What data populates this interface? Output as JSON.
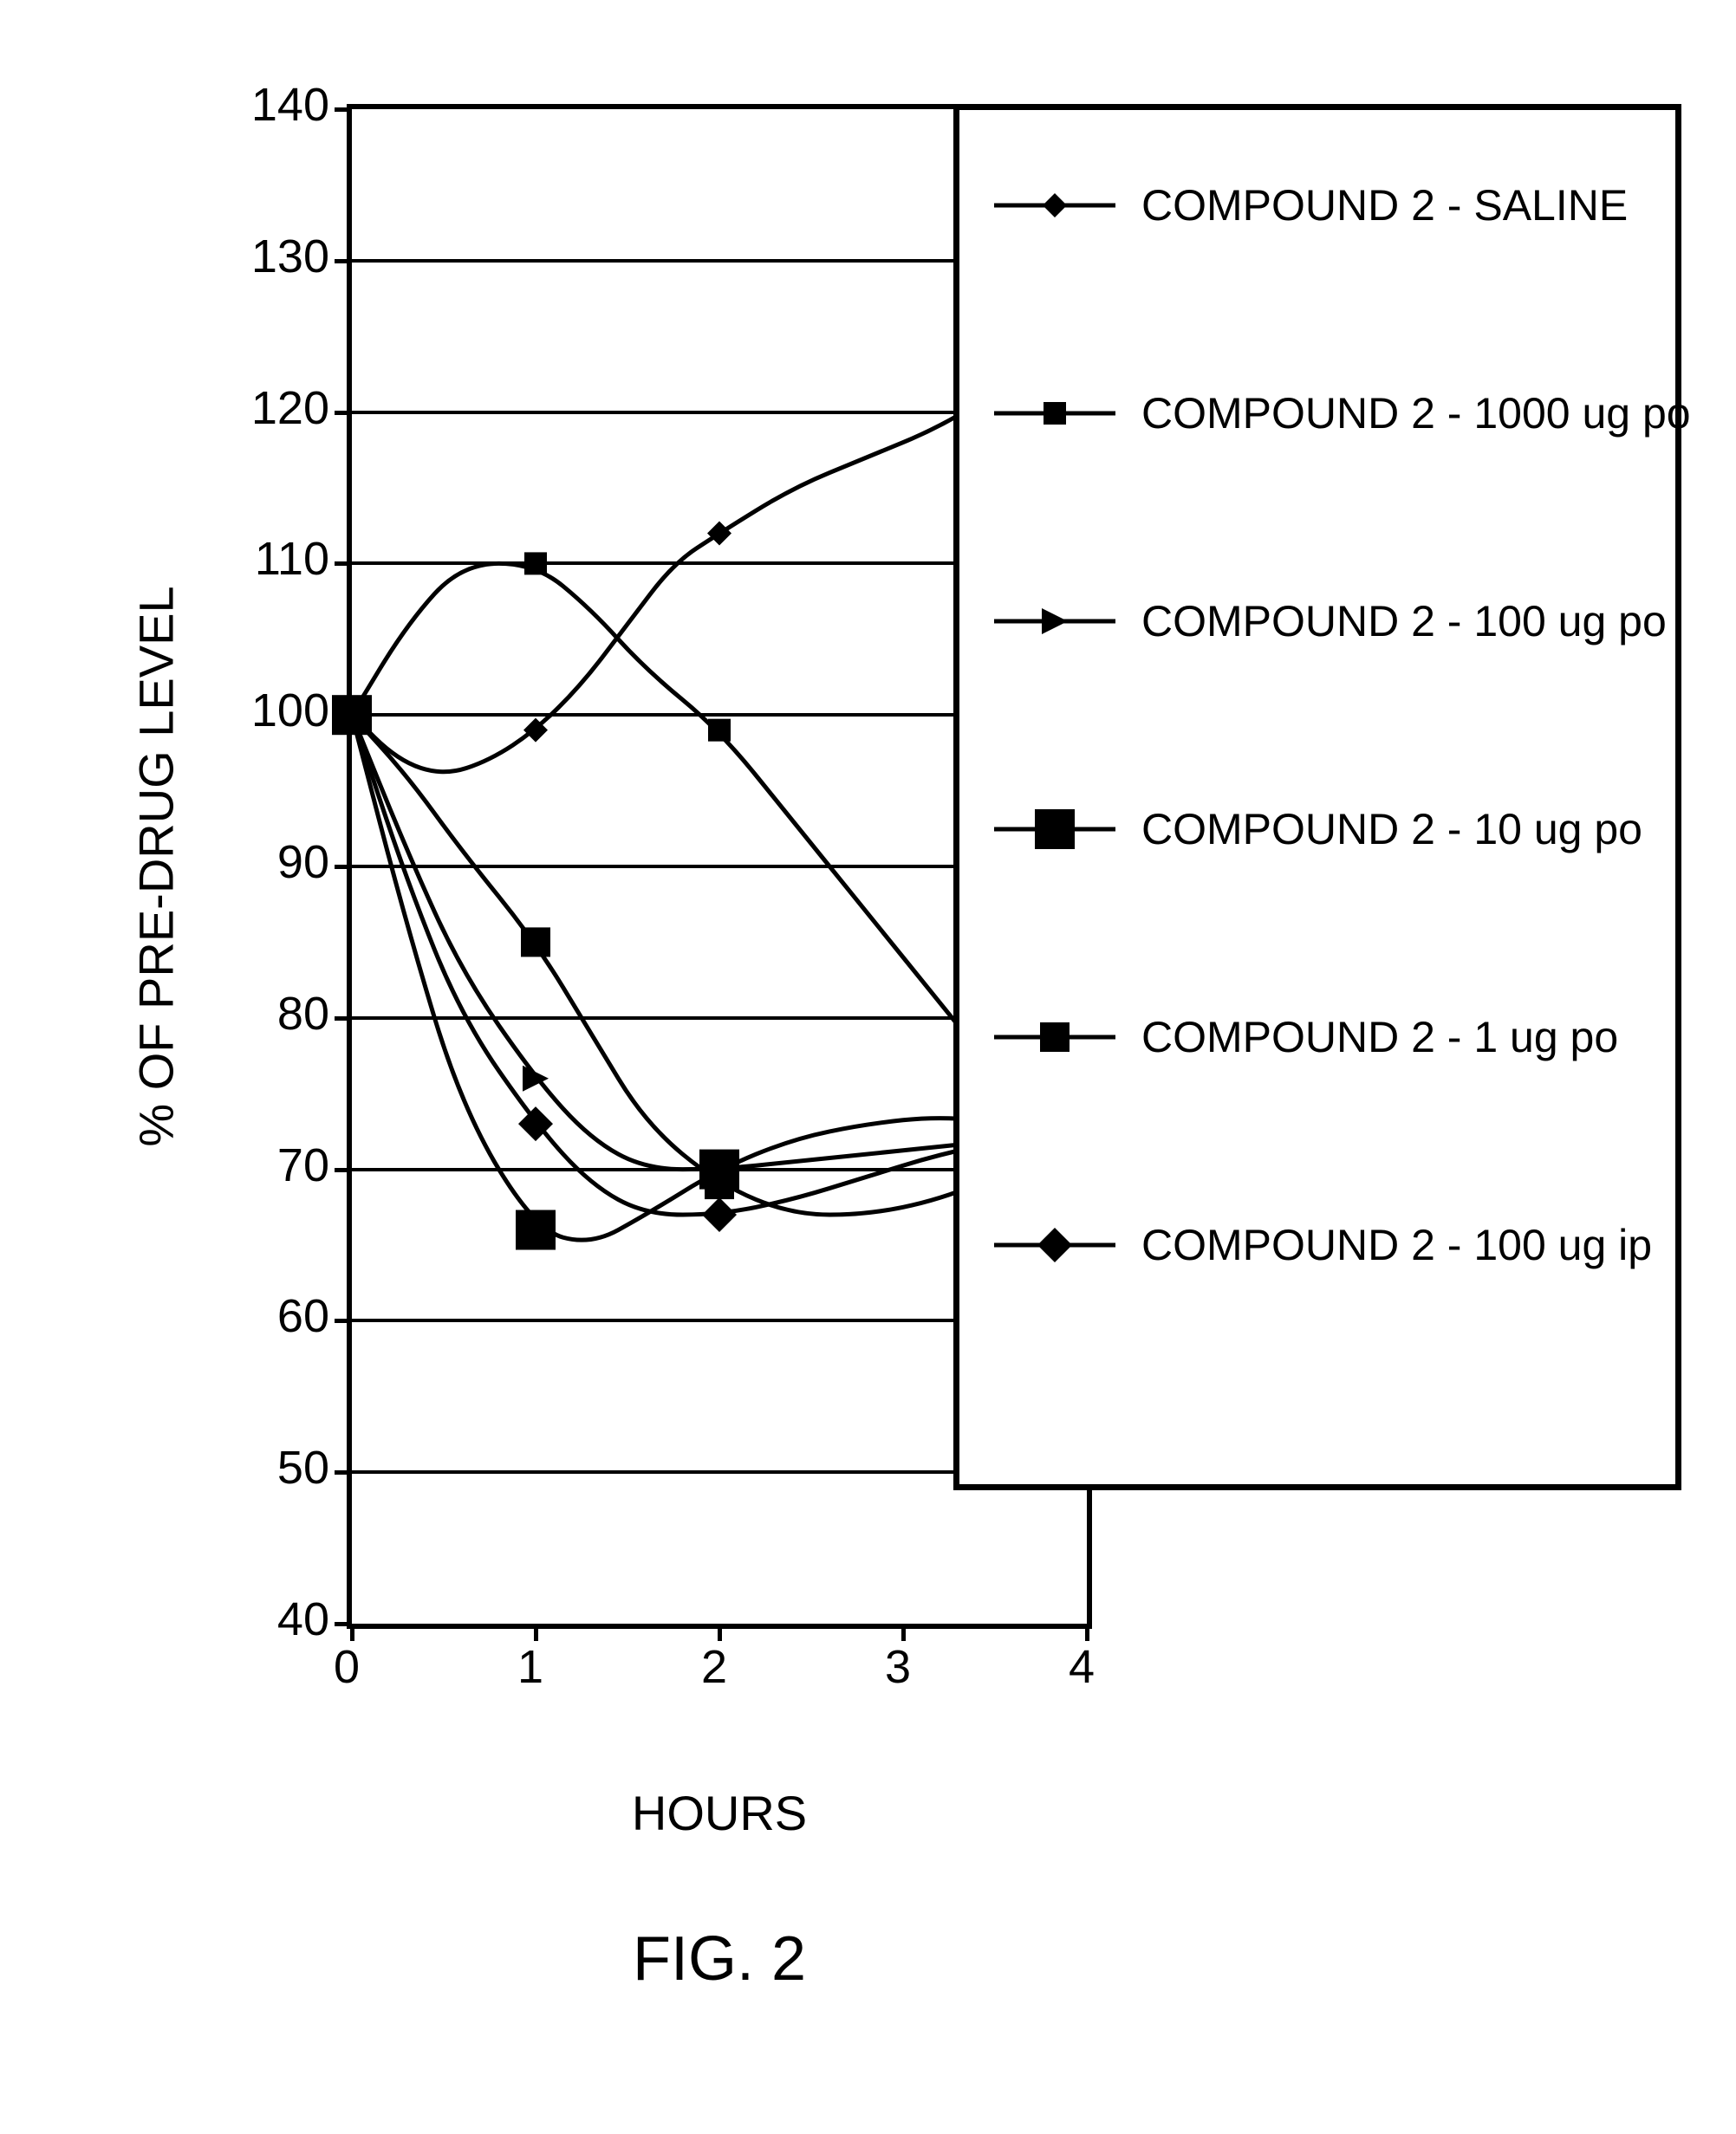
{
  "chart": {
    "type": "line",
    "xlabel": "HOURS",
    "ylabel": "% OF PRE-DRUG LEVEL",
    "fig_label": "FIG. 2",
    "xlim": [
      0,
      4
    ],
    "ylim": [
      40,
      140
    ],
    "ytick_step": 10,
    "xtick_step": 1,
    "yticks": [
      40,
      50,
      60,
      70,
      80,
      90,
      100,
      110,
      120,
      130,
      140
    ],
    "xticks": [
      0,
      1,
      2,
      3,
      4
    ],
    "background_color": "#ffffff",
    "axis_color": "#000000",
    "grid_color": "#000000",
    "line_color": "#000000",
    "line_width": 5,
    "label_fontsize": 56,
    "tick_fontsize": 54,
    "fig_fontsize": 72,
    "series": [
      {
        "label": "COMPOUND 2 - SALINE",
        "marker": "diamond-small",
        "marker_size": 28,
        "x": [
          0,
          1,
          2
        ],
        "y": [
          100,
          99,
          112
        ],
        "curve": [
          [
            0,
            100
          ],
          [
            0.25,
            97
          ],
          [
            0.5,
            96
          ],
          [
            0.75,
            97
          ],
          [
            1,
            99
          ],
          [
            1.25,
            102
          ],
          [
            1.5,
            106
          ],
          [
            1.75,
            110
          ],
          [
            2,
            112
          ],
          [
            2.4,
            115
          ],
          [
            2.8,
            117
          ],
          [
            3.2,
            119
          ],
          [
            3.6,
            122
          ],
          [
            4,
            125
          ]
        ]
      },
      {
        "label": "COMPOUND 2 - 1000 ug po",
        "marker": "square-small",
        "marker_size": 26,
        "x": [
          0,
          1,
          2
        ],
        "y": [
          100,
          110,
          99
        ],
        "curve": [
          [
            0,
            100
          ],
          [
            0.3,
            106
          ],
          [
            0.6,
            110
          ],
          [
            1,
            110
          ],
          [
            1.3,
            107
          ],
          [
            1.6,
            103
          ],
          [
            2,
            99
          ],
          [
            2.4,
            93
          ],
          [
            2.8,
            87
          ],
          [
            3.2,
            81
          ],
          [
            3.6,
            75
          ],
          [
            4,
            69
          ]
        ]
      },
      {
        "label": "COMPOUND 2 - 100 ug po",
        "marker": "triangle",
        "marker_size": 30,
        "x": [
          0,
          1,
          2
        ],
        "y": [
          100,
          76,
          70
        ],
        "curve": [
          [
            0,
            100
          ],
          [
            0.3,
            91
          ],
          [
            0.6,
            83
          ],
          [
            1,
            76
          ],
          [
            1.3,
            72
          ],
          [
            1.6,
            70
          ],
          [
            2,
            70
          ],
          [
            2.4,
            70.5
          ],
          [
            2.8,
            71
          ],
          [
            3.2,
            71.5
          ],
          [
            3.6,
            72
          ],
          [
            4,
            72
          ]
        ]
      },
      {
        "label": "COMPOUND 2 - 10 ug po",
        "marker": "square-large",
        "marker_size": 46,
        "x": [
          0,
          1,
          2
        ],
        "y": [
          100,
          66,
          70
        ],
        "curve": [
          [
            0,
            100
          ],
          [
            0.3,
            86
          ],
          [
            0.6,
            74
          ],
          [
            1,
            66
          ],
          [
            1.3,
            65
          ],
          [
            1.6,
            67
          ],
          [
            2,
            70
          ],
          [
            2.4,
            72
          ],
          [
            2.8,
            73
          ],
          [
            3.2,
            73.5
          ],
          [
            3.6,
            73
          ],
          [
            4,
            72
          ]
        ]
      },
      {
        "label": "COMPOUND 2 - 1 ug po",
        "marker": "square-med",
        "marker_size": 34,
        "x": [
          0,
          1,
          2
        ],
        "y": [
          100,
          85,
          69
        ],
        "curve": [
          [
            0,
            100
          ],
          [
            0.3,
            96
          ],
          [
            0.6,
            91
          ],
          [
            1,
            85
          ],
          [
            1.3,
            79
          ],
          [
            1.6,
            73
          ],
          [
            2,
            69
          ],
          [
            2.4,
            67
          ],
          [
            2.8,
            67
          ],
          [
            3.2,
            68
          ],
          [
            3.6,
            70
          ],
          [
            4,
            72
          ]
        ]
      },
      {
        "label": "COMPOUND 2 - 100 ug ip",
        "marker": "diamond-large",
        "marker_size": 40,
        "x": [
          0,
          1,
          2
        ],
        "y": [
          100,
          73,
          67
        ],
        "curve": [
          [
            0,
            100
          ],
          [
            0.3,
            89
          ],
          [
            0.6,
            80
          ],
          [
            1,
            73
          ],
          [
            1.3,
            69
          ],
          [
            1.6,
            67
          ],
          [
            2,
            67
          ],
          [
            2.4,
            68
          ],
          [
            2.8,
            69.5
          ],
          [
            3.2,
            71
          ],
          [
            3.6,
            72
          ],
          [
            4,
            73
          ]
        ]
      }
    ]
  },
  "legend": {
    "row_spacing": 240,
    "first_row_top": 70
  }
}
